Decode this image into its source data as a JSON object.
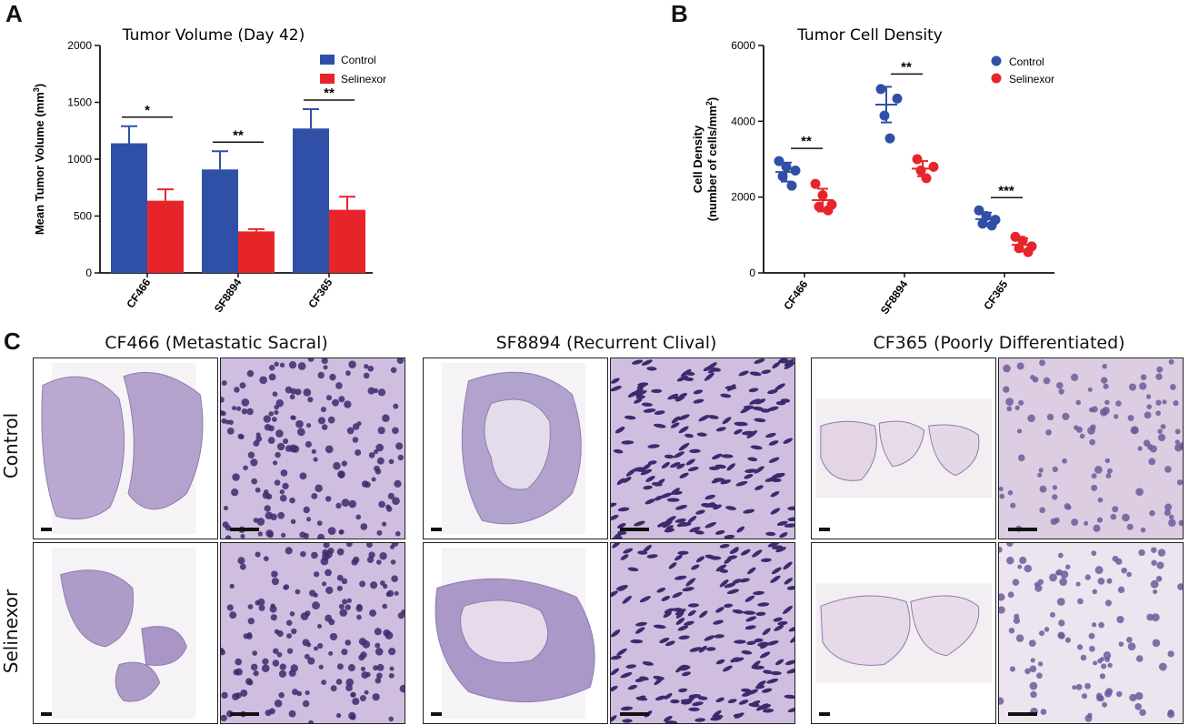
{
  "panels": {
    "a_letter": "A",
    "b_letter": "B",
    "c_letter": "C"
  },
  "chart_data": [
    {
      "type": "bar",
      "title": "Tumor Volume (Day 42)",
      "ylabel": "Mean Tumor Volume (mm³)",
      "ylabel_main": "Mean Tumor Volume (mm",
      "ylabel_sup": "3",
      "ylabel_end": ")",
      "xlabel": "",
      "categories": [
        "CF466",
        "SF8894",
        "CF365"
      ],
      "ylim": [
        0,
        2000
      ],
      "yticks": [
        0,
        500,
        1000,
        1500,
        2000
      ],
      "series": [
        {
          "name": "Control",
          "color": "#3050a8",
          "values": [
            1140,
            910,
            1270
          ],
          "errors": [
            150,
            160,
            170
          ]
        },
        {
          "name": "Selinexor",
          "color": "#e8242b",
          "values": [
            635,
            365,
            555
          ],
          "errors": [
            100,
            20,
            115
          ]
        }
      ],
      "significance": [
        "*",
        "**",
        "**"
      ],
      "legend": "top-right"
    },
    {
      "type": "scatter",
      "title": "Tumor Cell Density",
      "ylabel_line1": "Cell Density",
      "ylabel_line2_main": "(number of cells/mm",
      "ylabel_line2_sup": "2",
      "ylabel_line2_end": ")",
      "categories": [
        "CF466",
        "SF8894",
        "CF365"
      ],
      "ylim": [
        0,
        6000
      ],
      "yticks": [
        0,
        2000,
        4000,
        6000
      ],
      "series": [
        {
          "name": "Control",
          "color": "#3050a8",
          "points": [
            [
              2950,
              2800,
              2700,
              2550,
              2300
            ],
            [
              4850,
              4600,
              4150,
              3550
            ],
            [
              1650,
              1500,
              1400,
              1300,
              1250
            ]
          ],
          "mean": [
            2660,
            4440,
            1420
          ],
          "sd": [
            250,
            470,
            170
          ]
        },
        {
          "name": "Selinexor",
          "color": "#e8242b",
          "points": [
            [
              2350,
              2050,
              1800,
              1750,
              1650
            ],
            [
              3000,
              2800,
              2700,
              2500
            ],
            [
              950,
              850,
              700,
              650,
              550
            ]
          ],
          "mean": [
            1920,
            2750,
            740
          ],
          "sd": [
            300,
            200,
            170
          ]
        }
      ],
      "significance": [
        "**",
        "**",
        "***"
      ],
      "legend": "top-right"
    }
  ],
  "histology": {
    "columns": [
      "CF466 (Metastatic Sacral)",
      "SF8894 (Recurrent Clival)",
      "CF365 (Poorly Differentiated)"
    ],
    "rows": [
      "Control",
      "Selinexor"
    ]
  }
}
